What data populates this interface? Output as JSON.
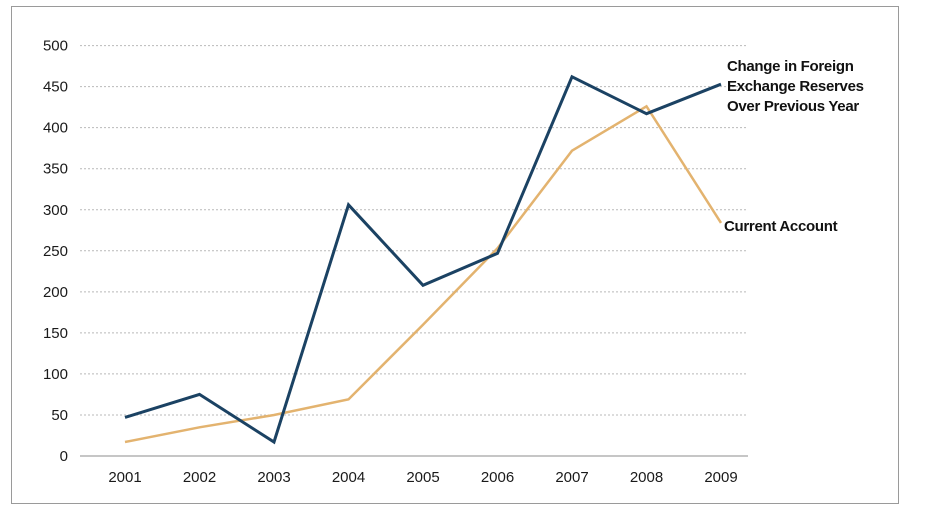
{
  "chart_data": {
    "type": "line",
    "x": [
      "2001",
      "2002",
      "2003",
      "2004",
      "2005",
      "2006",
      "2007",
      "2008",
      "2009"
    ],
    "series": [
      {
        "name": "Change in Foreign Exchange Reserves Over Previous Year",
        "label_lines": [
          "Change in Foreign",
          "Exchange Reserves",
          "Over Previous Year"
        ],
        "color": "#1b4263",
        "values": [
          47,
          75,
          17,
          306,
          208,
          247,
          462,
          417,
          453
        ]
      },
      {
        "name": "Current Account",
        "label_lines": [
          "Current Account"
        ],
        "color": "#e3b36f",
        "values": [
          17,
          35,
          50,
          69,
          160,
          253,
          372,
          426,
          284
        ]
      }
    ],
    "ylim": [
      0,
      500
    ],
    "yticks": [
      "0",
      "50",
      "100",
      "150",
      "200",
      "250",
      "300",
      "350",
      "400",
      "450",
      "500"
    ],
    "grid": true,
    "title": "",
    "xlabel": "",
    "ylabel": ""
  }
}
